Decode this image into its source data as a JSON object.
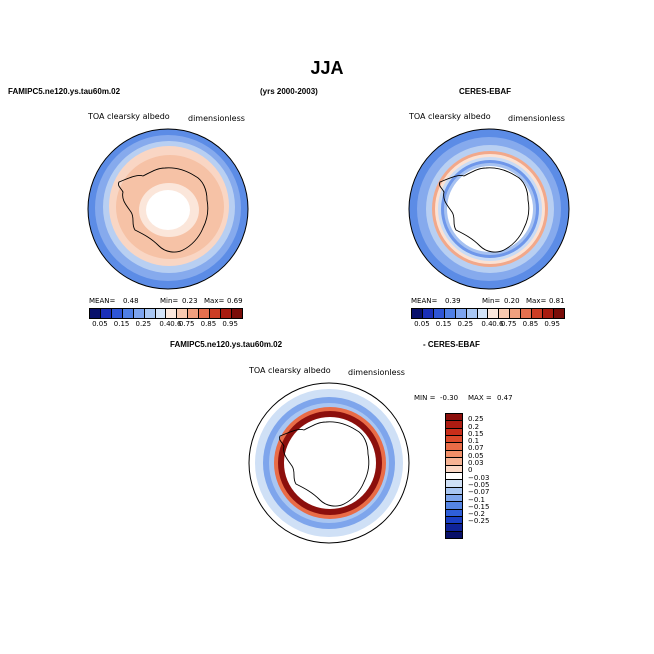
{
  "page": {
    "season_title": "JJA"
  },
  "panel_left": {
    "case_name": "FAMIPC5.ne120.ys.tau60m.02",
    "years": "(yrs 2000-2003)",
    "variable_label": "TOA clearsky albedo",
    "units_label": "dimensionless",
    "stats": {
      "mean_label": "MEAN=",
      "mean": "0.48",
      "min_label": "Min=",
      "min": "0.23",
      "max_label": "Max=",
      "max": "0.69"
    }
  },
  "panel_right": {
    "case_name": "CERES-EBAF",
    "variable_label": "TOA clearsky albedo",
    "units_label": "dimensionless",
    "stats": {
      "mean_label": "MEAN=",
      "mean": "0.39",
      "min_label": "Min=",
      "min": "0.20",
      "max_label": "Max=",
      "max": "0.81"
    }
  },
  "panel_diff": {
    "case_name": "FAMIPC5.ne120.ys.tau60m.02",
    "minus_label": "- CERES-EBAF",
    "variable_label": "TOA clearsky albedo",
    "units_label": "dimensionless",
    "stats": {
      "min_label": "MIN =",
      "min": "-0.30",
      "max_label": "MAX =",
      "max": "0.47"
    }
  },
  "colorbar_abs": {
    "ticks": [
      "0.05",
      "0.15",
      "0.25",
      "0.4",
      "0.6",
      "0.75",
      "0.85",
      "0.95"
    ],
    "colors": [
      "#08106b",
      "#1a2fb8",
      "#2e55d6",
      "#4f7fe6",
      "#7da4ef",
      "#a9c7f4",
      "#d3e3f8",
      "#fbe7dc",
      "#f8c9b0",
      "#f1a07f",
      "#e4704f",
      "#cc3d25",
      "#a81b0f",
      "#7a0c08"
    ]
  },
  "colorbar_diff": {
    "ticks": [
      "0.25",
      "0.2",
      "0.15",
      "0.1",
      "0.07",
      "0.05",
      "0.03",
      "0",
      "−0.03",
      "−0.05",
      "−0.07",
      "−0.1",
      "−0.15",
      "−0.2",
      "−0.25"
    ],
    "colors": [
      "#8c0f0c",
      "#ad1c12",
      "#c92e1a",
      "#dc4a2b",
      "#e96c47",
      "#f18f68",
      "#f6b394",
      "#fbd8c5",
      "#ffffff",
      "#cfe0f6",
      "#a9c6f2",
      "#7ea5ec",
      "#5585e5",
      "#2f5fd9",
      "#1a3fc4",
      "#0f2399",
      "#081069"
    ]
  },
  "chart_data": [
    {
      "type": "heatmap",
      "title": "FAMIPC5.ne120.ys.tau60m.02",
      "subtitle": "TOA clearsky albedo",
      "units": "dimensionless",
      "projection": "south-polar-stereographic",
      "mean": 0.48,
      "min": 0.23,
      "max": 0.69,
      "levels": [
        0.05,
        0.15,
        0.25,
        0.4,
        0.6,
        0.75,
        0.85,
        0.95
      ]
    },
    {
      "type": "heatmap",
      "title": "CERES-EBAF",
      "subtitle": "TOA clearsky albedo",
      "units": "dimensionless",
      "projection": "south-polar-stereographic",
      "mean": 0.39,
      "min": 0.2,
      "max": 0.81,
      "levels": [
        0.05,
        0.15,
        0.25,
        0.4,
        0.6,
        0.75,
        0.85,
        0.95
      ]
    },
    {
      "type": "heatmap",
      "title": "FAMIPC5.ne120.ys.tau60m.02 - CERES-EBAF",
      "subtitle": "TOA clearsky albedo",
      "units": "dimensionless",
      "projection": "south-polar-stereographic",
      "min": -0.3,
      "max": 0.47,
      "levels": [
        -0.25,
        -0.2,
        -0.15,
        -0.1,
        -0.07,
        -0.05,
        -0.03,
        0,
        0.03,
        0.05,
        0.07,
        0.1,
        0.15,
        0.2,
        0.25
      ]
    }
  ]
}
